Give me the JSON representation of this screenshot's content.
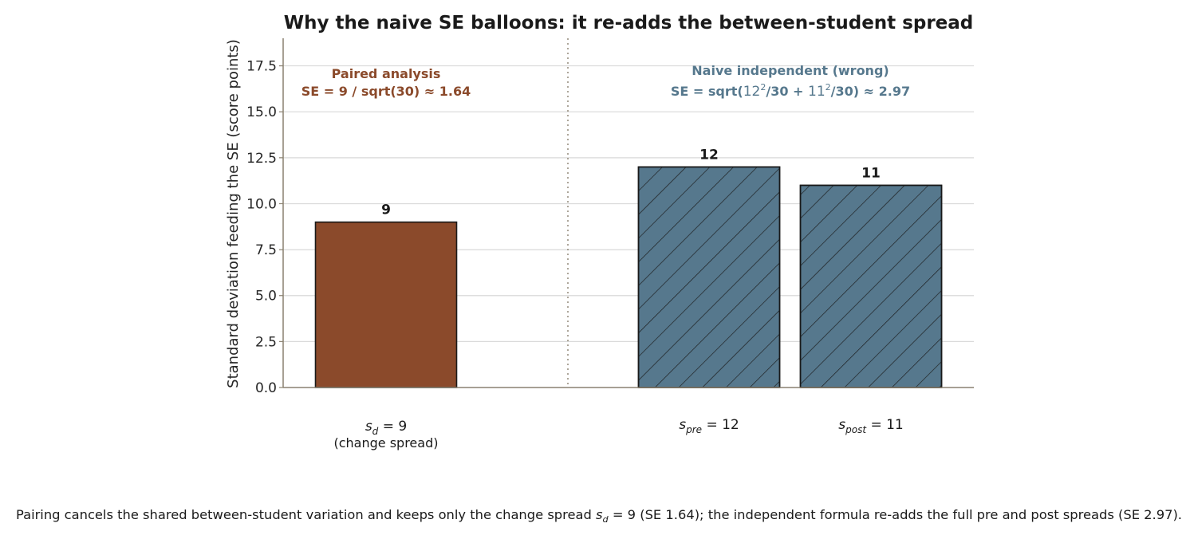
{
  "chart_data": {
    "type": "bar",
    "title": "Why the naive SE balloons: it re-adds the between-student spread",
    "ylabel": "Standard deviation feeding the SE (score points)",
    "xlabel": "",
    "ylim": [
      0,
      19
    ],
    "yticks": [
      0.0,
      2.5,
      5.0,
      7.5,
      10.0,
      12.5,
      15.0,
      17.5
    ],
    "ytick_labels": [
      "0.0",
      "2.5",
      "5.0",
      "7.5",
      "10.0",
      "12.5",
      "15.0",
      "17.5"
    ],
    "grid": "horizontal",
    "bars": [
      {
        "category": "s_d = 9",
        "value": 9,
        "value_label": "9",
        "group": "paired",
        "color": "#8B4A2B",
        "hatch": false
      },
      {
        "category": "s_pre = 12",
        "value": 12,
        "value_label": "12",
        "group": "naive",
        "color": "#56788D",
        "hatch": true
      },
      {
        "category": "s_post = 11",
        "value": 11,
        "value_label": "11",
        "group": "naive",
        "color": "#56788D",
        "hatch": true
      }
    ],
    "category_labels": {
      "paired": {
        "symbol": "s",
        "subscript": "d",
        "rest": " = 9",
        "note": "(change spread)"
      },
      "pre": {
        "symbol": "s",
        "subscript": "pre",
        "rest": " = 12"
      },
      "post": {
        "symbol": "s",
        "subscript": "post",
        "rest": " = 11"
      }
    },
    "annotations": {
      "paired": {
        "line1": "Paired analysis",
        "line2": "SE = 9 / sqrt(30)  ≈  1.64",
        "color": "#8B4A2B"
      },
      "naive": {
        "line1": "Naive independent (wrong)",
        "line2_prefix": "SE = sqrt(",
        "base1": "12",
        "mid": "/30 + ",
        "base2": "11",
        "line2_suffix": "/30)  ≈  2.97",
        "exponent": "2",
        "color": "#56788D"
      }
    },
    "divider": "dotted vertical line between paired and naive groups"
  },
  "caption": {
    "part1": "Pairing cancels the shared between-student variation and keeps only the change spread ",
    "symbol": "s",
    "subscript": "d",
    "rest": " = 9",
    "part2": " (SE 1.64); the independent formula re-adds the full pre and post spreads (SE 2.97)."
  },
  "colors": {
    "paired": "#8B4A2B",
    "naive": "#56788D",
    "grid": "#d9d9d9",
    "axis": "#8a8170"
  }
}
